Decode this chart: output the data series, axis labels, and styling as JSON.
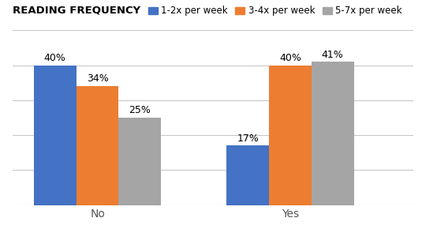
{
  "title": "READING FREQUENCY",
  "categories": [
    "No",
    "Yes"
  ],
  "series": [
    {
      "label": "1-2x per week",
      "color": "#4472C4",
      "values": [
        40,
        17
      ]
    },
    {
      "label": "3-4x per week",
      "color": "#ED7D31",
      "values": [
        34,
        40
      ]
    },
    {
      "label": "5-7x per week",
      "color": "#A5A5A5",
      "values": [
        25,
        41
      ]
    }
  ],
  "bar_width": 0.55,
  "group_centers": [
    1.0,
    3.5
  ],
  "ylim": [
    0,
    50
  ],
  "yticks": [
    0,
    10,
    20,
    30,
    40,
    50
  ],
  "label_fontsize": 9,
  "title_fontsize": 9.5,
  "legend_fontsize": 8.5,
  "tick_fontsize": 10,
  "background_color": "#ffffff",
  "grid_color": "#c8c8c8",
  "value_label_format": "{}%",
  "xlim": [
    -0.1,
    5.1
  ]
}
